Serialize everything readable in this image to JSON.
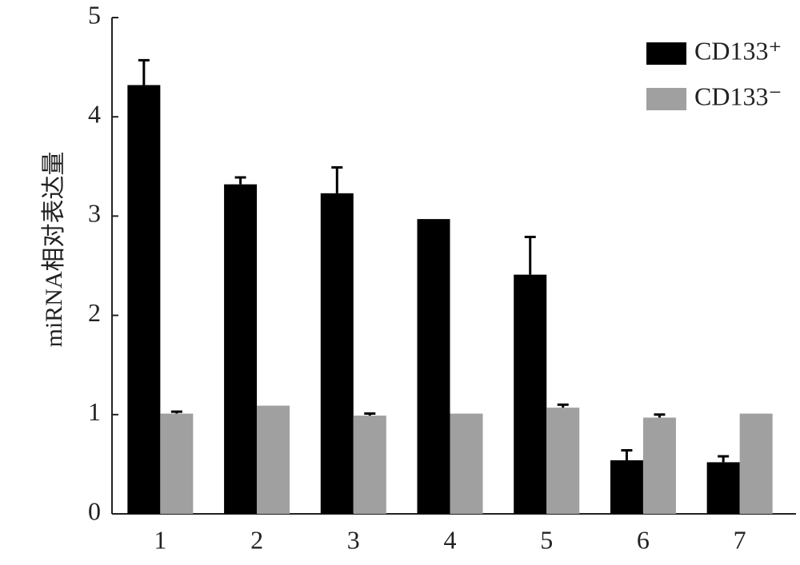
{
  "chart_data": {
    "type": "bar",
    "y_label": "miRNA相对表达量",
    "categories": [
      "1",
      "2",
      "3",
      "4",
      "5",
      "6",
      "7"
    ],
    "series": [
      {
        "name": "CD133⁺",
        "color": "#000000",
        "values": [
          4.32,
          3.32,
          3.23,
          2.97,
          2.41,
          0.54,
          0.52
        ],
        "errors": [
          0.25,
          0.07,
          0.26,
          null,
          0.38,
          0.1,
          0.06
        ]
      },
      {
        "name": "CD133⁻",
        "color": "#a0a0a0",
        "values": [
          1.01,
          1.09,
          0.99,
          1.01,
          1.07,
          0.97,
          1.01
        ],
        "errors": [
          0.02,
          null,
          0.02,
          null,
          0.03,
          0.03,
          null
        ]
      }
    ],
    "ylim": [
      0,
      5
    ],
    "yticks": [
      0,
      1,
      2,
      3,
      4,
      5
    ],
    "legend": "upper right"
  }
}
